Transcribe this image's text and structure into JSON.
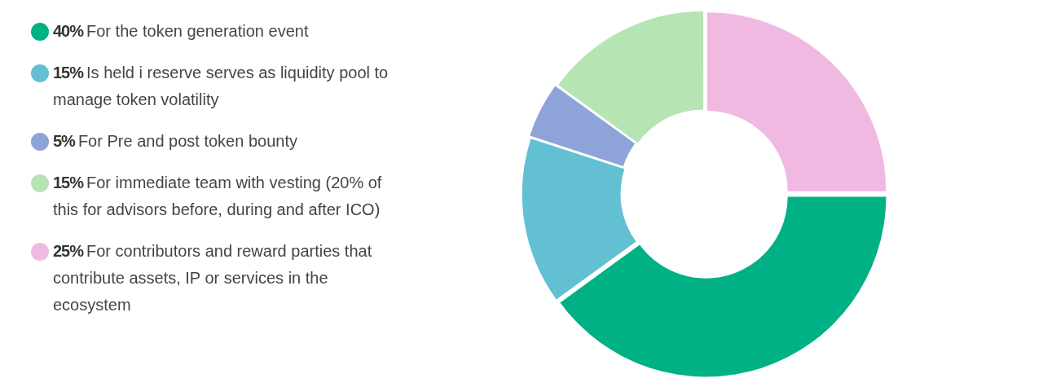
{
  "chart_data": {
    "type": "donut",
    "categories": [
      "For the token generation event",
      "Is held i reserve serves as liquidity pool to manage token volatility",
      "For Pre and post token bounty",
      "For immediate team with vesting (20% of this for advisors before, during and after ICO)",
      "For contributors and reward parties that contribute assets, IP or services in the ecosystem"
    ],
    "values": [
      40,
      15,
      5,
      15,
      25
    ],
    "value_labels": [
      "40%",
      "15%",
      "5%",
      "15%",
      "25%"
    ],
    "colors": [
      "#00b185",
      "#63c0d3",
      "#8ea4d8",
      "#b6e4b5",
      "#f0b9e1"
    ],
    "legend": "left"
  }
}
